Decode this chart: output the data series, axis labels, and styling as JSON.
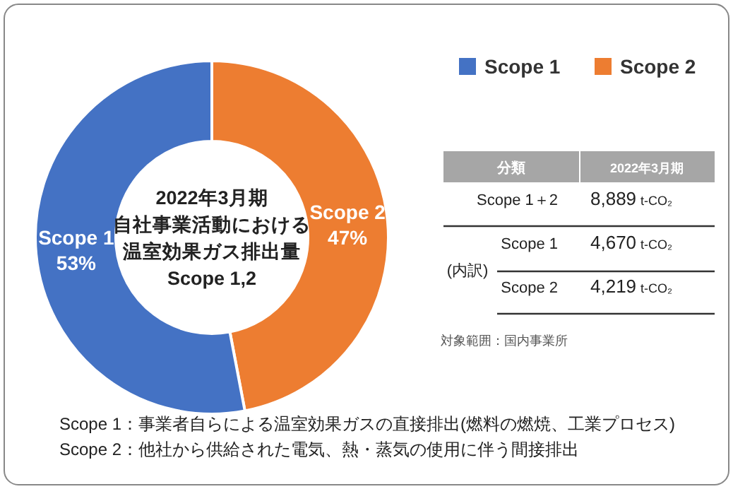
{
  "chart_data": [
    {
      "type": "donut",
      "title": "2022年3月期",
      "subtitle": "自社事業活動における温室効果ガス排出量Scope 1,2",
      "categories": [
        "Scope 1",
        "Scope 2"
      ],
      "values": [
        53,
        47
      ],
      "value_labels": [
        "53%",
        "47%"
      ],
      "colors": [
        "#4472c4",
        "#ed7d31"
      ],
      "legend": "top right",
      "annotations": [
        "Scope 1：事業者自らによる温室効果ガスの直接排出(燃料の燃焼、工業プロセス)",
        "Scope 2：他社から供給された電気、熱・蒸気の使用に伴う間接排出"
      ]
    },
    {
      "type": "other",
      "xlabel": "分類",
      "ylabel": "2022年3月期",
      "categories": [
        "Scope 1＋2",
        "Scope 1",
        "Scope 2"
      ],
      "values": [
        8889,
        4670,
        4219
      ],
      "value_labels": [
        "8,889 t-CO₂",
        "4,670 t-CO₂",
        "4,219 t-CO₂"
      ],
      "annotations": [
        "(内訳)",
        "対象範囲：国内事業所"
      ]
    }
  ]
}
